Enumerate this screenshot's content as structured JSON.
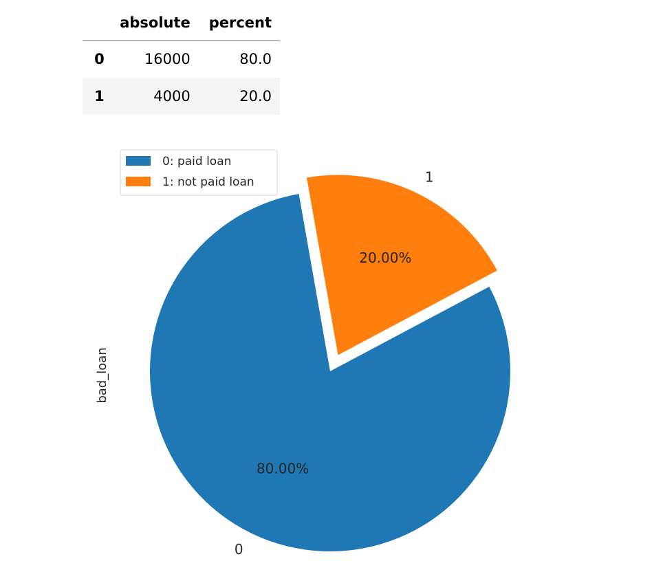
{
  "table": {
    "columns": [
      "",
      "absolute",
      "percent"
    ],
    "rows": [
      {
        "index": "0",
        "absolute": "16000",
        "percent": "80.0"
      },
      {
        "index": "1",
        "absolute": "4000",
        "percent": "20.0"
      }
    ]
  },
  "chart_data": {
    "type": "pie",
    "ylabel": "bad_loan",
    "categories": [
      "0",
      "1"
    ],
    "values": [
      80.0,
      20.0
    ],
    "percent_labels": [
      "80.00%",
      "20.00%"
    ],
    "explode": [
      0,
      0.1
    ],
    "start_angle_deg": 100,
    "colors": [
      "#1f77b4",
      "#ff7f0e"
    ],
    "legend": {
      "placement": "upper-left",
      "entries": [
        "0: paid loan",
        "1: not paid loan"
      ]
    }
  }
}
